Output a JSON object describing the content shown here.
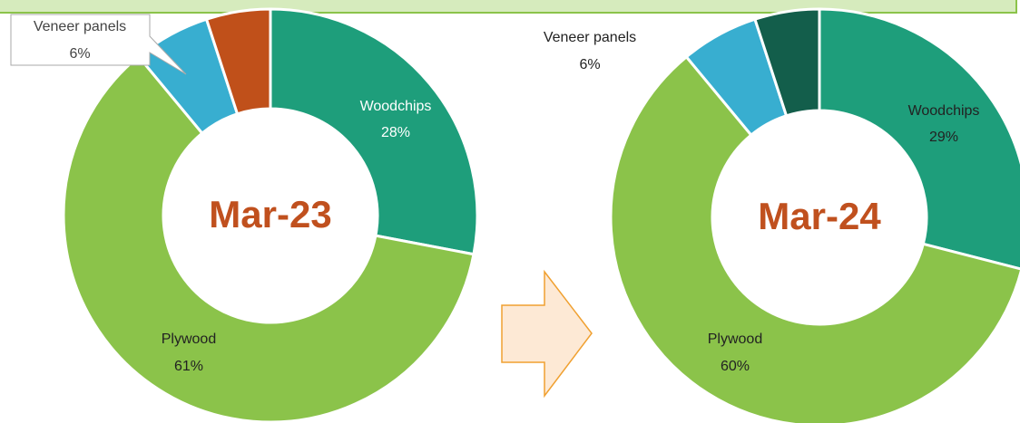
{
  "chart_data": [
    {
      "type": "donut",
      "title": "Mar-23",
      "categories": [
        "Woodchips",
        "Plywood",
        "Veneer panels",
        null
      ],
      "values": [
        28,
        61,
        6,
        5
      ],
      "value_labels": [
        "28%",
        "61%",
        "6%",
        null
      ],
      "colors": [
        "#1e9e7b",
        "#8bc34a",
        "#38aed0",
        "#c0501a"
      ]
    },
    {
      "type": "donut",
      "title": "Mar-24",
      "categories": [
        "Woodchips",
        "Plywood",
        "Veneer panels",
        null
      ],
      "values": [
        29,
        60,
        6,
        5
      ],
      "value_labels": [
        "29%",
        "60%",
        "6%",
        null
      ],
      "colors": [
        "#1e9e7b",
        "#8bc34a",
        "#38aed0",
        "#135e4b"
      ]
    }
  ]
}
